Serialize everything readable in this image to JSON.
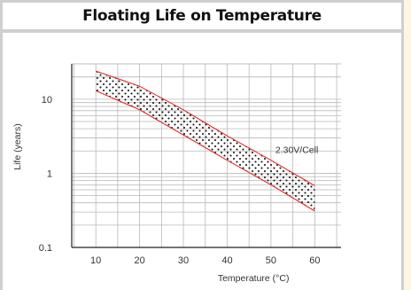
{
  "chart_data": {
    "type": "area",
    "title": "Floating Life on Temperature",
    "xlabel": "Temperature (°C)",
    "ylabel": "Life (years)",
    "x_scale": "linear",
    "y_scale": "log",
    "xlim": [
      4.5,
      66
    ],
    "ylim": [
      0.1,
      30
    ],
    "x_ticks": [
      "10",
      "20",
      "30",
      "40",
      "50",
      "60"
    ],
    "y_ticks": [
      "0.1",
      "1",
      "10"
    ],
    "grid": true,
    "band": {
      "x": [
        10,
        20,
        30,
        40,
        50,
        60
      ],
      "upper": [
        24,
        15,
        7.2,
        3.2,
        1.5,
        0.68
      ],
      "lower": [
        13,
        7.2,
        3.3,
        1.5,
        0.7,
        0.31
      ]
    },
    "annotations": [
      {
        "text": "2.30V/Cell",
        "x": 51,
        "y": 2.1
      }
    ],
    "colors": {
      "band_outline": "#e02a2a",
      "band_dots": "#111111",
      "grid": "#b9b9b9",
      "axis": "#222222"
    }
  }
}
